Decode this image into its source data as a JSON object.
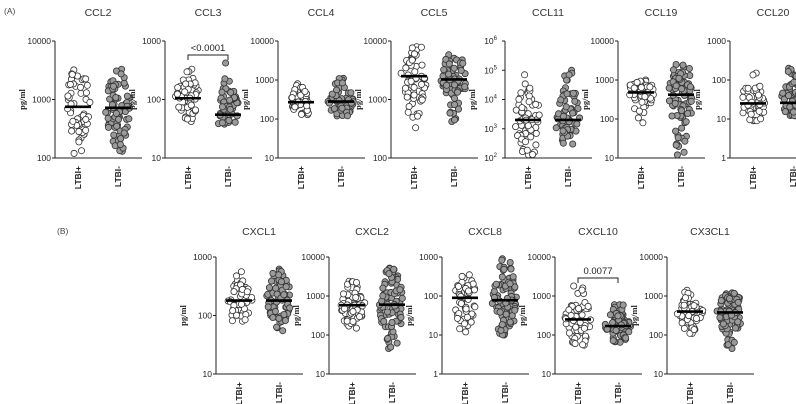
{
  "figure": {
    "section_a_label": "(A)",
    "section_b_label": "(B)",
    "ylabel": "pg/ml",
    "groups": [
      "LTBI+",
      "LTBI-"
    ],
    "group_colors": [
      "#ffffff",
      "#9a9a9a"
    ],
    "marker_stroke": "#333333"
  },
  "chart_data": [
    {
      "type": "scatter",
      "title": "CCL2",
      "ylabel": "pg/ml",
      "yscale": "log",
      "ylim": [
        100,
        10000
      ],
      "ticks": [
        {
          "v": 100,
          "label": "100"
        },
        {
          "v": 1000,
          "label": "1000"
        },
        {
          "v": 10000,
          "label": "10000"
        }
      ],
      "categories": [
        "LTBI+",
        "LTBI-"
      ],
      "series": [
        {
          "name": "LTBI+",
          "median": 750,
          "range": [
            120,
            3200
          ],
          "n": 60,
          "seed": 11
        },
        {
          "name": "LTBI-",
          "median": 720,
          "range": [
            130,
            3300
          ],
          "n": 80,
          "seed": 12
        }
      ]
    },
    {
      "type": "scatter",
      "title": "CCL3",
      "ylabel": "pg/ml",
      "yscale": "log",
      "ylim": [
        10,
        1000
      ],
      "ticks": [
        {
          "v": 10,
          "label": "10"
        },
        {
          "v": 100,
          "label": "100"
        },
        {
          "v": 1000,
          "label": "1000"
        }
      ],
      "categories": [
        "LTBI+",
        "LTBI-"
      ],
      "series": [
        {
          "name": "LTBI+",
          "median": 105,
          "range": [
            42,
            330
          ],
          "n": 60,
          "seed": 21
        },
        {
          "name": "LTBI-",
          "median": 55,
          "range": [
            38,
            420
          ],
          "n": 55,
          "seed": 22
        }
      ],
      "annotation": "<0.0001"
    },
    {
      "type": "scatter",
      "title": "CCL4",
      "ylabel": "pg/ml",
      "yscale": "log",
      "ylim": [
        10,
        10000
      ],
      "ticks": [
        {
          "v": 10,
          "label": "10"
        },
        {
          "v": 100,
          "label": "100"
        },
        {
          "v": 1000,
          "label": "1000"
        },
        {
          "v": 10000,
          "label": "10000"
        }
      ],
      "categories": [
        "LTBI+",
        "LTBI-"
      ],
      "series": [
        {
          "name": "LTBI+",
          "median": 270,
          "range": [
            130,
            800
          ],
          "n": 45,
          "seed": 31
        },
        {
          "name": "LTBI-",
          "median": 280,
          "range": [
            120,
            1100
          ],
          "n": 60,
          "seed": 32
        }
      ]
    },
    {
      "type": "scatter",
      "title": "CCL5",
      "ylabel": "pg/ml",
      "yscale": "log",
      "ylim": [
        100,
        10000
      ],
      "ticks": [
        {
          "v": 100,
          "label": "100"
        },
        {
          "v": 1000,
          "label": "1000"
        },
        {
          "v": 10000,
          "label": "10000"
        }
      ],
      "categories": [
        "LTBI+",
        "LTBI-"
      ],
      "series": [
        {
          "name": "LTBI+",
          "median": 2500,
          "range": [
            330,
            8000
          ],
          "n": 60,
          "seed": 41
        },
        {
          "name": "LTBI-",
          "median": 2200,
          "range": [
            420,
            5800
          ],
          "n": 70,
          "seed": 42
        }
      ]
    },
    {
      "type": "scatter",
      "title": "CCL11",
      "ylabel": "pg/ml",
      "yscale": "log",
      "ylim": [
        100,
        1000000
      ],
      "ticks": [
        {
          "v": 100,
          "label": "10",
          "exp": "2"
        },
        {
          "v": 1000,
          "label": "10",
          "exp": "3"
        },
        {
          "v": 10000,
          "label": "10",
          "exp": "4"
        },
        {
          "v": 100000,
          "label": "10",
          "exp": "5"
        },
        {
          "v": 1000000,
          "label": "10",
          "exp": "6"
        }
      ],
      "categories": [
        "LTBI+",
        "LTBI-"
      ],
      "series": [
        {
          "name": "LTBI+",
          "median": 2000,
          "range": [
            130,
            70000
          ],
          "n": 60,
          "seed": 51
        },
        {
          "name": "LTBI-",
          "median": 2000,
          "range": [
            300,
            100000
          ],
          "n": 75,
          "seed": 52
        }
      ]
    },
    {
      "type": "scatter",
      "title": "CCL19",
      "ylabel": "pg/ml",
      "yscale": "log",
      "ylim": [
        10,
        10000
      ],
      "ticks": [
        {
          "v": 10,
          "label": "10"
        },
        {
          "v": 100,
          "label": "100"
        },
        {
          "v": 1000,
          "label": "1000"
        },
        {
          "v": 10000,
          "label": "10000"
        }
      ],
      "categories": [
        "LTBI+",
        "LTBI-"
      ],
      "series": [
        {
          "name": "LTBI+",
          "median": 480,
          "range": [
            80,
            1000
          ],
          "n": 50,
          "seed": 61
        },
        {
          "name": "LTBI-",
          "median": 420,
          "range": [
            12,
            2500
          ],
          "n": 85,
          "seed": 62
        }
      ]
    },
    {
      "type": "scatter",
      "title": "CCL20",
      "ylabel": "pg/ml",
      "yscale": "log",
      "ylim": [
        1,
        1000
      ],
      "ticks": [
        {
          "v": 1,
          "label": "1"
        },
        {
          "v": 10,
          "label": "10"
        },
        {
          "v": 100,
          "label": "100"
        },
        {
          "v": 1000,
          "label": "1000"
        }
      ],
      "categories": [
        "LTBI+",
        "LTBI-"
      ],
      "series": [
        {
          "name": "LTBI+",
          "median": 25,
          "range": [
            9,
            150
          ],
          "n": 50,
          "seed": 71
        },
        {
          "name": "LTBI-",
          "median": 26,
          "range": [
            12,
            200
          ],
          "n": 70,
          "seed": 72
        }
      ]
    },
    {
      "type": "scatter",
      "title": "CXCL1",
      "ylabel": "pg/ml",
      "yscale": "log",
      "ylim": [
        10,
        1000
      ],
      "ticks": [
        {
          "v": 10,
          "label": "10"
        },
        {
          "v": 100,
          "label": "100"
        },
        {
          "v": 1000,
          "label": "1000"
        }
      ],
      "categories": [
        "LTBI+",
        "LTBI-"
      ],
      "series": [
        {
          "name": "LTBI+",
          "median": 180,
          "range": [
            80,
            560
          ],
          "n": 55,
          "seed": 81
        },
        {
          "name": "LTBI-",
          "median": 180,
          "range": [
            55,
            620
          ],
          "n": 75,
          "seed": 82
        }
      ]
    },
    {
      "type": "scatter",
      "title": "CXCL2",
      "ylabel": "pg/ml",
      "yscale": "log",
      "ylim": [
        10,
        10000
      ],
      "ticks": [
        {
          "v": 10,
          "label": "10"
        },
        {
          "v": 100,
          "label": "100"
        },
        {
          "v": 1000,
          "label": "1000"
        },
        {
          "v": 10000,
          "label": "10000"
        }
      ],
      "categories": [
        "LTBI+",
        "LTBI-"
      ],
      "series": [
        {
          "name": "LTBI+",
          "median": 580,
          "range": [
            150,
            2400
          ],
          "n": 60,
          "seed": 91
        },
        {
          "name": "LTBI-",
          "median": 600,
          "range": [
            45,
            5200
          ],
          "n": 85,
          "seed": 92
        }
      ]
    },
    {
      "type": "scatter",
      "title": "CXCL8",
      "ylabel": "pg/ml",
      "yscale": "log",
      "ylim": [
        1,
        1000
      ],
      "ticks": [
        {
          "v": 1,
          "label": "1"
        },
        {
          "v": 10,
          "label": "10"
        },
        {
          "v": 100,
          "label": "100"
        },
        {
          "v": 1000,
          "label": "1000"
        }
      ],
      "categories": [
        "LTBI+",
        "LTBI-"
      ],
      "series": [
        {
          "name": "LTBI+",
          "median": 90,
          "range": [
            12,
            350
          ],
          "n": 55,
          "seed": 101
        },
        {
          "name": "LTBI-",
          "median": 78,
          "range": [
            10,
            900
          ],
          "n": 85,
          "seed": 102
        }
      ]
    },
    {
      "type": "scatter",
      "title": "CXCL10",
      "ylabel": "pg/ml",
      "yscale": "log",
      "ylim": [
        10,
        10000
      ],
      "ticks": [
        {
          "v": 10,
          "label": "10"
        },
        {
          "v": 100,
          "label": "100"
        },
        {
          "v": 1000,
          "label": "1000"
        },
        {
          "v": 10000,
          "label": "10000"
        }
      ],
      "categories": [
        "LTBI+",
        "LTBI-"
      ],
      "series": [
        {
          "name": "LTBI+",
          "median": 250,
          "range": [
            55,
            1800
          ],
          "n": 60,
          "seed": 111
        },
        {
          "name": "LTBI-",
          "median": 170,
          "range": [
            65,
            600
          ],
          "n": 70,
          "seed": 112
        }
      ],
      "annotation": "0.0077"
    },
    {
      "type": "scatter",
      "title": "CX3CL1",
      "ylabel": "pg/ml",
      "yscale": "log",
      "ylim": [
        10,
        10000
      ],
      "ticks": [
        {
          "v": 10,
          "label": "10"
        },
        {
          "v": 100,
          "label": "100"
        },
        {
          "v": 1000,
          "label": "1000"
        },
        {
          "v": 10000,
          "label": "10000"
        }
      ],
      "categories": [
        "LTBI+",
        "LTBI-"
      ],
      "series": [
        {
          "name": "LTBI+",
          "median": 400,
          "range": [
            110,
            1400
          ],
          "n": 55,
          "seed": 121
        },
        {
          "name": "LTBI-",
          "median": 380,
          "range": [
            45,
            1200
          ],
          "n": 80,
          "seed": 122
        }
      ]
    }
  ]
}
